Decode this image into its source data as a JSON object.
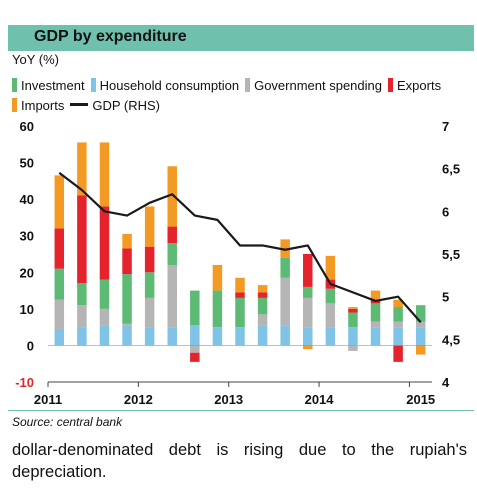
{
  "title": "GDP by expenditure",
  "y_unit_label": "YoY (%)",
  "legend": [
    {
      "label": "Investment",
      "color": "#5dba74",
      "kind": "bar"
    },
    {
      "label": "Household consumption",
      "color": "#7fc4e6",
      "kind": "bar"
    },
    {
      "label": "Government spending",
      "color": "#b5b5b5",
      "kind": "bar"
    },
    {
      "label": "Exports",
      "color": "#e4232c",
      "kind": "bar"
    },
    {
      "label": "Imports",
      "color": "#f39a25",
      "kind": "bar"
    },
    {
      "label": "GDP (RHS)",
      "color": "#1a1a1a",
      "kind": "line"
    }
  ],
  "source": "Source: central bank",
  "body_text": "dollar-denominated debt is rising due to the rupiah's depreciation.",
  "chart_data": {
    "type": "bar",
    "stacked": true,
    "x_tick_labels": [
      "2011",
      "2012",
      "2013",
      "2014",
      "2015"
    ],
    "left_axis": {
      "ticks": [
        "60",
        "50",
        "40",
        "30",
        "20",
        "10",
        "0",
        "-10"
      ],
      "ylim": [
        -10,
        60
      ]
    },
    "right_axis": {
      "ticks": [
        "7",
        "6,5",
        "6",
        "5,5",
        "5",
        "4,5",
        "4"
      ],
      "ylim": [
        4,
        7
      ]
    },
    "categories": [
      "Q1 2011",
      "Q2 2011",
      "Q3 2011",
      "Q4 2011",
      "Q1 2012",
      "Q2 2012",
      "Q3 2012",
      "Q4 2012",
      "Q1 2013",
      "Q2 2013",
      "Q3 2013",
      "Q4 2013",
      "Q1 2014",
      "Q2 2014",
      "Q3 2014",
      "Q4 2014",
      "Q1 2015"
    ],
    "series": [
      {
        "name": "Household consumption",
        "color": "#7fc4e6",
        "values": [
          4.5,
          5.0,
          5.5,
          5.5,
          5.0,
          5.0,
          5.5,
          5.0,
          5.0,
          5.5,
          5.5,
          5.0,
          5.0,
          5.0,
          5.0,
          5.0,
          5.0
        ]
      },
      {
        "name": "Government spending",
        "color": "#b5b5b5",
        "values": [
          8.0,
          6.0,
          4.5,
          0.5,
          8.0,
          17.0,
          -2.0,
          0.0,
          0.0,
          3.0,
          13.0,
          8.0,
          6.5,
          -1.5,
          1.5,
          1.5,
          1.5
        ]
      },
      {
        "name": "Investment",
        "color": "#5dba74",
        "values": [
          8.5,
          6.0,
          8.0,
          13.5,
          7.0,
          6.0,
          9.5,
          10.0,
          8.0,
          4.5,
          5.5,
          3.0,
          4.0,
          4.0,
          5.0,
          4.0,
          4.5
        ]
      },
      {
        "name": "Exports",
        "color": "#e4232c",
        "values": [
          11.0,
          24.0,
          20.0,
          7.0,
          7.0,
          4.5,
          -2.5,
          0.0,
          1.5,
          1.5,
          0.0,
          9.0,
          2.5,
          1.0,
          1.0,
          -4.5,
          0.0
        ]
      },
      {
        "name": "Imports",
        "color": "#f39a25",
        "values": [
          14.5,
          14.5,
          17.5,
          4.0,
          11.0,
          16.5,
          0.0,
          7.0,
          4.0,
          2.0,
          5.0,
          -1.0,
          6.5,
          0.5,
          2.5,
          2.0,
          -2.5
        ]
      }
    ],
    "gdp_rhs": {
      "name": "GDP (RHS)",
      "color": "#1a1a1a",
      "values": [
        6.45,
        6.25,
        6.0,
        5.95,
        6.1,
        6.2,
        5.95,
        5.9,
        5.6,
        5.6,
        5.55,
        5.6,
        5.15,
        5.05,
        4.95,
        5.0,
        4.7
      ]
    }
  }
}
